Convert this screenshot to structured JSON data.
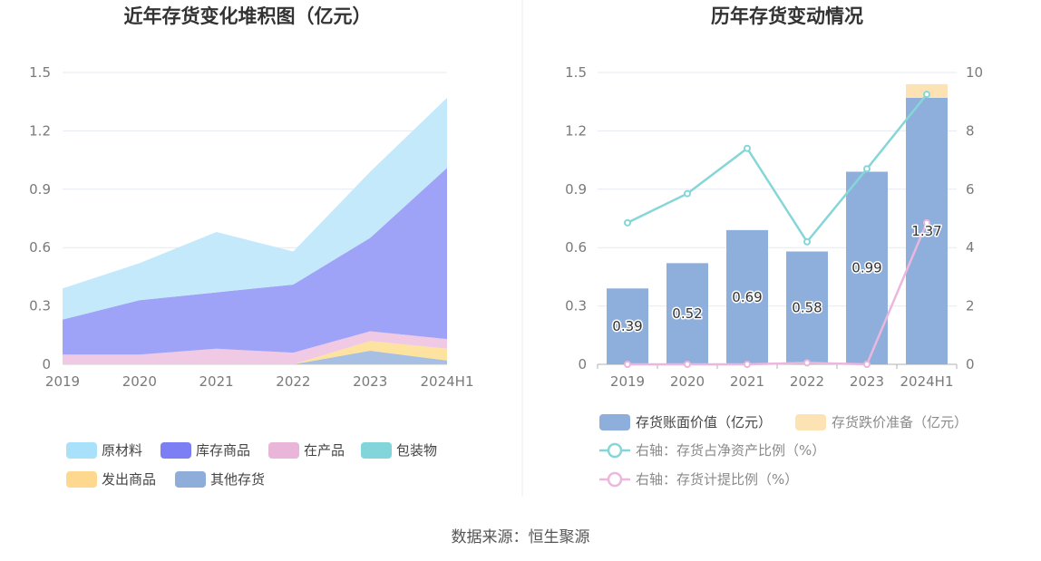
{
  "source_text": "数据来源：恒生聚源",
  "chart_data": [
    {
      "type": "area",
      "stacked": true,
      "title": "近年存货变化堆积图（亿元）",
      "categories": [
        "2019",
        "2020",
        "2021",
        "2022",
        "2023",
        "2024H1"
      ],
      "ylim": [
        0,
        1.5
      ],
      "yticks": [
        "0",
        "0.3",
        "0.6",
        "0.9",
        "1.2",
        "1.5"
      ],
      "grid": true,
      "legend_position": "bottom",
      "series": [
        {
          "name": "其他存货",
          "color": "#a6bfe3",
          "values": [
            0.0,
            0.0,
            0.0,
            0.0,
            0.07,
            0.02
          ]
        },
        {
          "name": "发出商品",
          "color": "#fde2a0",
          "values": [
            0.0,
            0.0,
            0.0,
            0.0,
            0.05,
            0.06
          ]
        },
        {
          "name": "包装物",
          "color": "#82d6db",
          "values": [
            0.0,
            0.0,
            0.0,
            0.0,
            0.0,
            0.0
          ]
        },
        {
          "name": "在产品",
          "color": "#f0c9e4",
          "values": [
            0.05,
            0.05,
            0.08,
            0.06,
            0.05,
            0.05
          ]
        },
        {
          "name": "库存商品",
          "color": "#9ea3f8",
          "values": [
            0.18,
            0.28,
            0.29,
            0.35,
            0.48,
            0.88
          ]
        },
        {
          "name": "原材料",
          "color": "#c3e9fb",
          "values": [
            0.16,
            0.19,
            0.31,
            0.17,
            0.34,
            0.36
          ]
        }
      ],
      "legend": [
        {
          "name": "原材料",
          "color": "#a9e1fa"
        },
        {
          "name": "库存商品",
          "color": "#7b7ff3"
        },
        {
          "name": "在产品",
          "color": "#e9b6da"
        },
        {
          "name": "包装物",
          "color": "#82d6db"
        },
        {
          "name": "发出商品",
          "color": "#fdd88e"
        },
        {
          "name": "其他存货",
          "color": "#8fadd9"
        }
      ]
    },
    {
      "type": "bar",
      "title": "历年存货变动情况",
      "categories": [
        "2019",
        "2020",
        "2021",
        "2022",
        "2023",
        "2024H1"
      ],
      "ylim": [
        0,
        1.5
      ],
      "yticks": [
        "0",
        "0.3",
        "0.6",
        "0.9",
        "1.2",
        "1.5"
      ],
      "y2lim": [
        0,
        10
      ],
      "y2ticks": [
        "0",
        "2",
        "4",
        "6",
        "8",
        "10"
      ],
      "grid": true,
      "legend_position": "bottom",
      "series": [
        {
          "name": "存货账面价值（亿元）",
          "color": "#8eaedb",
          "stack": true,
          "values": [
            0.39,
            0.52,
            0.69,
            0.58,
            0.99,
            1.37
          ],
          "labels": [
            "0.39",
            "0.52",
            "0.69",
            "0.58",
            "0.99",
            "1.37"
          ]
        },
        {
          "name": "存货跌价准备（亿元）",
          "color": "#fde3b4",
          "stack": true,
          "values": [
            0,
            0,
            0,
            0,
            0,
            0.07
          ]
        },
        {
          "name": "右轴：存货占净资产比例（%）",
          "color": "#86d6d8",
          "type": "line",
          "axis": "right",
          "values": [
            4.85,
            5.85,
            7.4,
            4.2,
            6.7,
            9.25
          ]
        },
        {
          "name": "右轴：存货计提比例（%）",
          "color": "#ebb7dd",
          "type": "line",
          "axis": "right",
          "values": [
            0,
            0,
            0,
            0.05,
            0,
            4.85
          ]
        }
      ]
    }
  ]
}
